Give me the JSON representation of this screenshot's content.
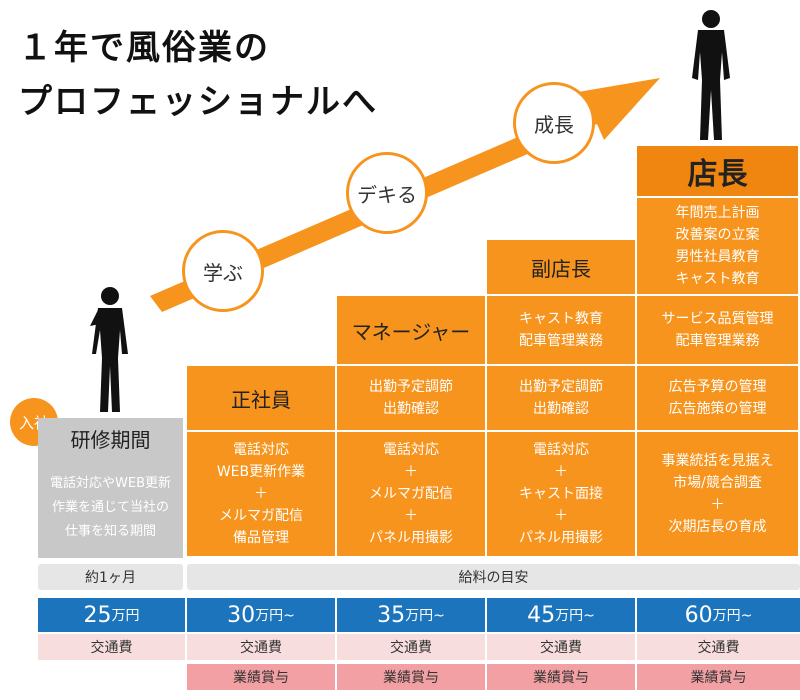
{
  "headline": {
    "line1": "１年で風俗業の",
    "line2": "プロフェッショナルへ"
  },
  "arrow_color": "#f7941d",
  "circles": [
    "学ぶ",
    "デキる",
    "成長"
  ],
  "entry_badge": "入社",
  "training": {
    "title": "研修期間",
    "desc": [
      "電話対応やWEB更新",
      "作業を通じて当社の",
      "仕事を知る期間"
    ]
  },
  "columns": [
    {
      "role": "正社員",
      "tasks_bottom": [
        "電話対応",
        "WEB更新作業",
        "＋",
        "メルマガ配信",
        "備品管理"
      ]
    },
    {
      "role": "マネージャー",
      "tasks_mid": [
        "出勤予定調節",
        "出勤確認"
      ],
      "tasks_bottom": [
        "電話対応",
        "＋",
        "メルマガ配信",
        "＋",
        "パネル用撮影"
      ]
    },
    {
      "role": "副店長",
      "tasks_top": [
        "キャスト教育",
        "配車管理業務"
      ],
      "tasks_mid": [
        "出勤予定調節",
        "出勤確認"
      ],
      "tasks_bottom": [
        "電話対応",
        "＋",
        "キャスト面接",
        "＋",
        "パネル用撮影"
      ]
    },
    {
      "role": "店長",
      "tasks_top2": [
        "年間売上計画",
        "改善案の立案",
        "男性社員教育",
        "キャスト教育"
      ],
      "tasks_top": [
        "サービス品質管理",
        "配車管理業務"
      ],
      "tasks_mid": [
        "広告予算の管理",
        "広告施策の管理"
      ],
      "tasks_bottom": [
        "事業統括を見据え",
        "市場/競合調査",
        "＋",
        "次期店長の育成"
      ]
    }
  ],
  "period_label": "約1ヶ月",
  "salary_label": "給料の目安",
  "salaries": [
    {
      "amount": "25",
      "unit": "万円"
    },
    {
      "amount": "30",
      "unit": "万円~"
    },
    {
      "amount": "35",
      "unit": "万円~"
    },
    {
      "amount": "45",
      "unit": "万円~"
    },
    {
      "amount": "60",
      "unit": "万円~"
    }
  ],
  "transport": "交通費",
  "bonus": "業績賞与"
}
